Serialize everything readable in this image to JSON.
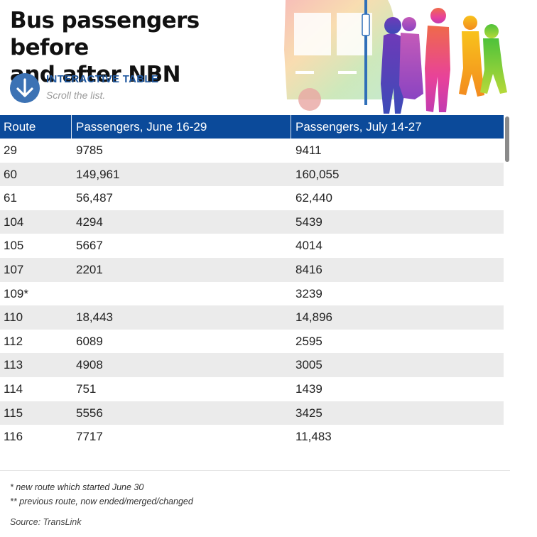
{
  "header": {
    "title_line1": "Bus passengers before",
    "title_line2": "and after NBN",
    "interactive_label": "INTERACTIVE TABLE",
    "scroll_hint": "Scroll the list."
  },
  "table": {
    "columns": [
      "Route",
      "Passengers, June 16-29",
      "Passengers, July 14-27"
    ],
    "rows": [
      [
        "29",
        "9785",
        "9411"
      ],
      [
        "60",
        "149,961",
        "160,055"
      ],
      [
        "61",
        "56,487",
        "62,440"
      ],
      [
        "104",
        "4294",
        "5439"
      ],
      [
        "105",
        "5667",
        "4014"
      ],
      [
        "107",
        "2201",
        "8416"
      ],
      [
        "109*",
        "",
        "3239"
      ],
      [
        "110",
        "18,443",
        "14,896"
      ],
      [
        "112",
        "6089",
        "2595"
      ],
      [
        "113",
        "4908",
        "3005"
      ],
      [
        "114",
        "751",
        "1439"
      ],
      [
        "115",
        "5556",
        "3425"
      ],
      [
        "116",
        "7717",
        "11,483"
      ]
    ]
  },
  "footer": {
    "note_new": "* new route which started June 30",
    "note_previous": "** previous route, now ended/merged/changed",
    "source": "Source: TransLink"
  },
  "icons": {
    "scroll_button": "arrow-down-icon",
    "illustration": "bus-and-passengers-illustration"
  },
  "colors": {
    "header_bg": "#0b4a9a",
    "accent_blue": "#3c72b4",
    "label_blue": "#1f58a0",
    "stripe": "#ebebeb"
  }
}
